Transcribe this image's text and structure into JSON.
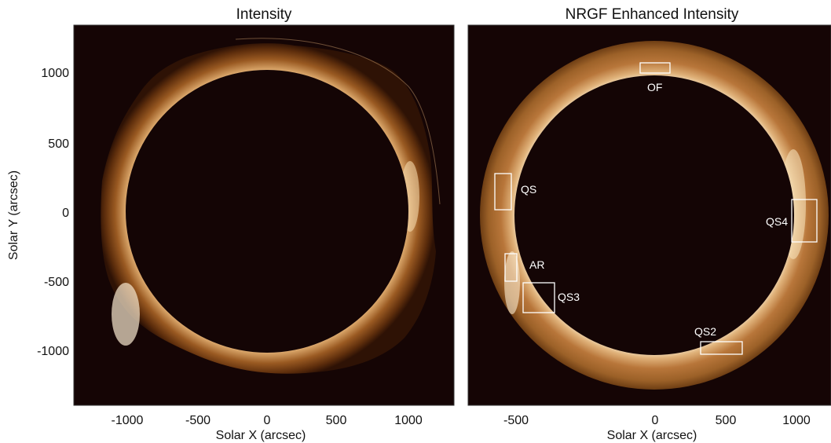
{
  "left_panel": {
    "title": "Intensity",
    "xlabel": "Solar X (arcsec)",
    "ylabel": "Solar Y (arcsec)",
    "x_ticks": [
      "-1000",
      "-500",
      "0",
      "500",
      "1000"
    ],
    "y_ticks": [
      "1000",
      "500",
      "0",
      "-500",
      "-1000"
    ]
  },
  "right_panel": {
    "title": "NRGF Enhanced Intensity",
    "xlabel": "Solar X (arcsec)",
    "x_ticks": [
      "-500",
      "0",
      "500",
      "1000"
    ],
    "regions": [
      {
        "label": "OF"
      },
      {
        "label": "QS"
      },
      {
        "label": "QS4"
      },
      {
        "label": "AR"
      },
      {
        "label": "QS3"
      },
      {
        "label": "QS2"
      }
    ]
  },
  "colors": {
    "disk": "#140505",
    "corona_bright": "#f4e2c2",
    "corona_mid": "#b06a26",
    "corona_dark": "#5a2c0a",
    "box": "#ffffff"
  }
}
